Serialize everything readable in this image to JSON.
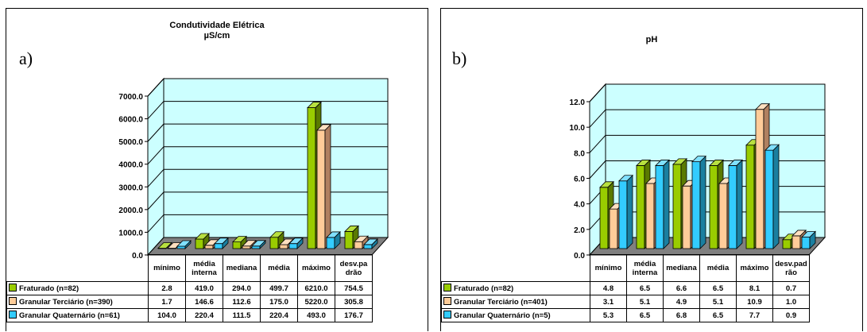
{
  "chart_data": [
    {
      "type": "bar",
      "panel_label": "a)",
      "title": "Condutividade Elétrica",
      "subtitle": "µS/cm",
      "categories": [
        "mínimo",
        "média interna",
        "mediana",
        "média",
        "máximo",
        "desv.pa drão"
      ],
      "category_lines": [
        [
          "mínimo"
        ],
        [
          "média",
          "interna"
        ],
        [
          "mediana"
        ],
        [
          "média"
        ],
        [
          "máximo"
        ],
        [
          "desv.pa",
          "drão"
        ]
      ],
      "yticks": [
        "0.0",
        "1000.0",
        "2000.0",
        "3000.0",
        "4000.0",
        "5000.0",
        "6000.0",
        "7000.0"
      ],
      "ylim": [
        0,
        7000
      ],
      "series": [
        {
          "name": "Fraturado (n=82)",
          "values": [
            2.8,
            419.0,
            294.0,
            499.7,
            6210.0,
            754.5
          ],
          "labels": [
            "2.8",
            "419.0",
            "294.0",
            "499.7",
            "6210.0",
            "754.5"
          ]
        },
        {
          "name": "Granular Terciário (n=390)",
          "values": [
            1.7,
            146.6,
            112.6,
            175.0,
            5220.0,
            305.8
          ],
          "labels": [
            "1.7",
            "146.6",
            "112.6",
            "175.0",
            "5220.0",
            "305.8"
          ]
        },
        {
          "name": "Granular Quaternário (n=61)",
          "values": [
            104.0,
            220.4,
            111.5,
            220.4,
            493.0,
            176.7
          ],
          "labels": [
            "104.0",
            "220.4",
            "111.5",
            "220.4",
            "493.0",
            "176.7"
          ]
        }
      ]
    },
    {
      "type": "bar",
      "panel_label": "b)",
      "title": "pH",
      "categories": [
        "mínimo",
        "média interna",
        "mediana",
        "média",
        "máximo",
        "desv.pad rão"
      ],
      "category_lines": [
        [
          "mínimo"
        ],
        [
          "média",
          "interna"
        ],
        [
          "mediana"
        ],
        [
          "média"
        ],
        [
          "máximo"
        ],
        [
          "desv.pad",
          "rão"
        ]
      ],
      "yticks": [
        "0.0",
        "2.0",
        "4.0",
        "6.0",
        "8.0",
        "10.0",
        "12.0"
      ],
      "ylim": [
        0,
        12
      ],
      "series": [
        {
          "name": "Fraturado (n=82)",
          "values": [
            4.8,
            6.5,
            6.6,
            6.5,
            8.1,
            0.7
          ],
          "labels": [
            "4.8",
            "6.5",
            "6.6",
            "6.5",
            "8.1",
            "0.7"
          ]
        },
        {
          "name": "Granular Terciário (n=401)",
          "values": [
            3.1,
            5.1,
            4.9,
            5.1,
            10.9,
            1.0
          ],
          "labels": [
            "3.1",
            "5.1",
            "4.9",
            "5.1",
            "10.9",
            "1.0"
          ]
        },
        {
          "name": "Granular Quaternário (n=5)",
          "values": [
            5.3,
            6.5,
            6.8,
            6.5,
            7.7,
            0.9
          ],
          "labels": [
            "5.3",
            "6.5",
            "6.8",
            "6.5",
            "7.7",
            "0.9"
          ]
        }
      ]
    }
  ],
  "colors": {
    "plot_background": "#ccffff",
    "gridline": "#000000",
    "series": [
      "#99cc00",
      "#ffcc99",
      "#33ccff"
    ],
    "series_top": [
      "#b8e040",
      "#ffe0c0",
      "#80e0ff"
    ],
    "series_side": [
      "#5a7a00",
      "#b08060",
      "#1a7fa0"
    ],
    "floor": "#808080"
  }
}
